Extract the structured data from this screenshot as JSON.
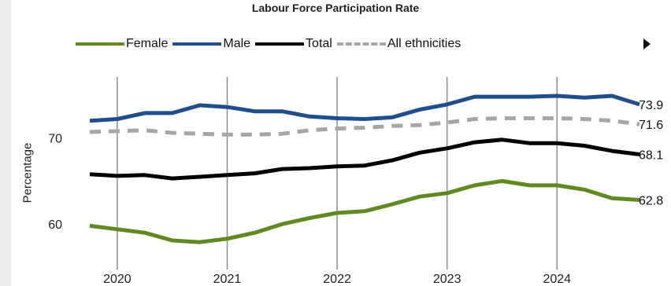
{
  "chart_data": {
    "type": "line",
    "title": "Labour Force Participation Rate",
    "ylabel": "Percentage",
    "xlabel": "",
    "x_ticks": [
      "2020",
      "2021",
      "2022",
      "2023",
      "2024"
    ],
    "y_ticks": [
      "60",
      "70"
    ],
    "ylim": [
      55,
      78
    ],
    "xlim": [
      2019.65,
      2024.7
    ],
    "grid": "vertical lines at each year",
    "legend_position": "top",
    "x": [
      2019.75,
      2020.0,
      2020.25,
      2020.5,
      2020.75,
      2021.0,
      2021.25,
      2021.5,
      2021.75,
      2022.0,
      2022.25,
      2022.5,
      2022.75,
      2023.0,
      2023.25,
      2023.5,
      2023.75,
      2024.0,
      2024.25,
      2024.5,
      2024.75
    ],
    "series": [
      {
        "name": "Female",
        "color": "#5f8a1f",
        "style": "solid",
        "values": [
          59.8,
          59.4,
          59.0,
          58.1,
          57.9,
          58.3,
          59.0,
          60.0,
          60.7,
          61.3,
          61.5,
          62.3,
          63.2,
          63.6,
          64.5,
          65.0,
          64.5,
          64.5,
          64.0,
          63.0,
          62.8
        ],
        "end_label": "62.8"
      },
      {
        "name": "Male",
        "color": "#1f4e8c",
        "style": "solid",
        "values": [
          72.0,
          72.2,
          72.9,
          72.9,
          73.8,
          73.6,
          73.1,
          73.1,
          72.5,
          72.3,
          72.2,
          72.4,
          73.3,
          73.9,
          74.8,
          74.8,
          74.8,
          74.9,
          74.7,
          74.9,
          73.9
        ],
        "end_label": "73.9"
      },
      {
        "name": "Total",
        "color": "#000000",
        "style": "solid",
        "values": [
          65.8,
          65.6,
          65.7,
          65.3,
          65.5,
          65.7,
          65.9,
          66.4,
          66.5,
          66.7,
          66.8,
          67.4,
          68.3,
          68.8,
          69.5,
          69.8,
          69.4,
          69.4,
          69.1,
          68.5,
          68.1
        ],
        "end_label": "68.1"
      },
      {
        "name": "All ethnicities",
        "color": "#a6a6a6",
        "style": "dashed",
        "values": [
          70.7,
          70.8,
          70.9,
          70.6,
          70.5,
          70.4,
          70.4,
          70.5,
          70.9,
          71.1,
          71.2,
          71.4,
          71.5,
          71.8,
          72.2,
          72.3,
          72.3,
          72.3,
          72.2,
          72.0,
          71.6
        ],
        "end_label": "71.6"
      }
    ]
  }
}
